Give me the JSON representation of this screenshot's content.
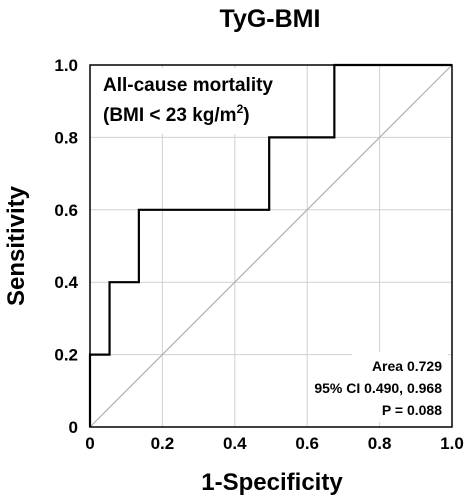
{
  "chart_data": {
    "type": "line",
    "title": "TyG-BMI",
    "xlabel": "1-Specificity",
    "ylabel": "Sensitivity",
    "xlim": [
      0,
      1
    ],
    "ylim": [
      0,
      1
    ],
    "x_ticks": [
      "0",
      "0.2",
      "0.4",
      "0.6",
      "0.8",
      "1.0"
    ],
    "y_ticks": [
      "0",
      "0.2",
      "0.4",
      "0.6",
      "0.8",
      "1.0"
    ],
    "grid": true,
    "series": [
      {
        "x": [
          0,
          0,
          0.054,
          0.054,
          0.135,
          0.135,
          0.054,
          0.135,
          0.135,
          0.495,
          0.495,
          0.675,
          0.675,
          1.0
        ],
        "y": [
          0,
          0.2,
          0.2,
          0.4,
          0.4,
          0.6,
          0.4,
          0.4,
          0.6,
          0.6,
          0.8,
          0.8,
          1.0,
          1.0
        ],
        "color": "#000000"
      }
    ],
    "reference_line": {
      "x": [
        0,
        1
      ],
      "y": [
        0,
        1
      ],
      "color": "#b0b0b0"
    },
    "annotation": {
      "line1": "All-cause mortality",
      "line2_prefix": "(BMI < 23 kg/m",
      "line2_sup": "2",
      "line2_suffix": ")"
    },
    "stats": {
      "area": "Area 0.729",
      "ci": "95%  CI 0.490, 0.968",
      "p": "P = 0.088"
    }
  }
}
